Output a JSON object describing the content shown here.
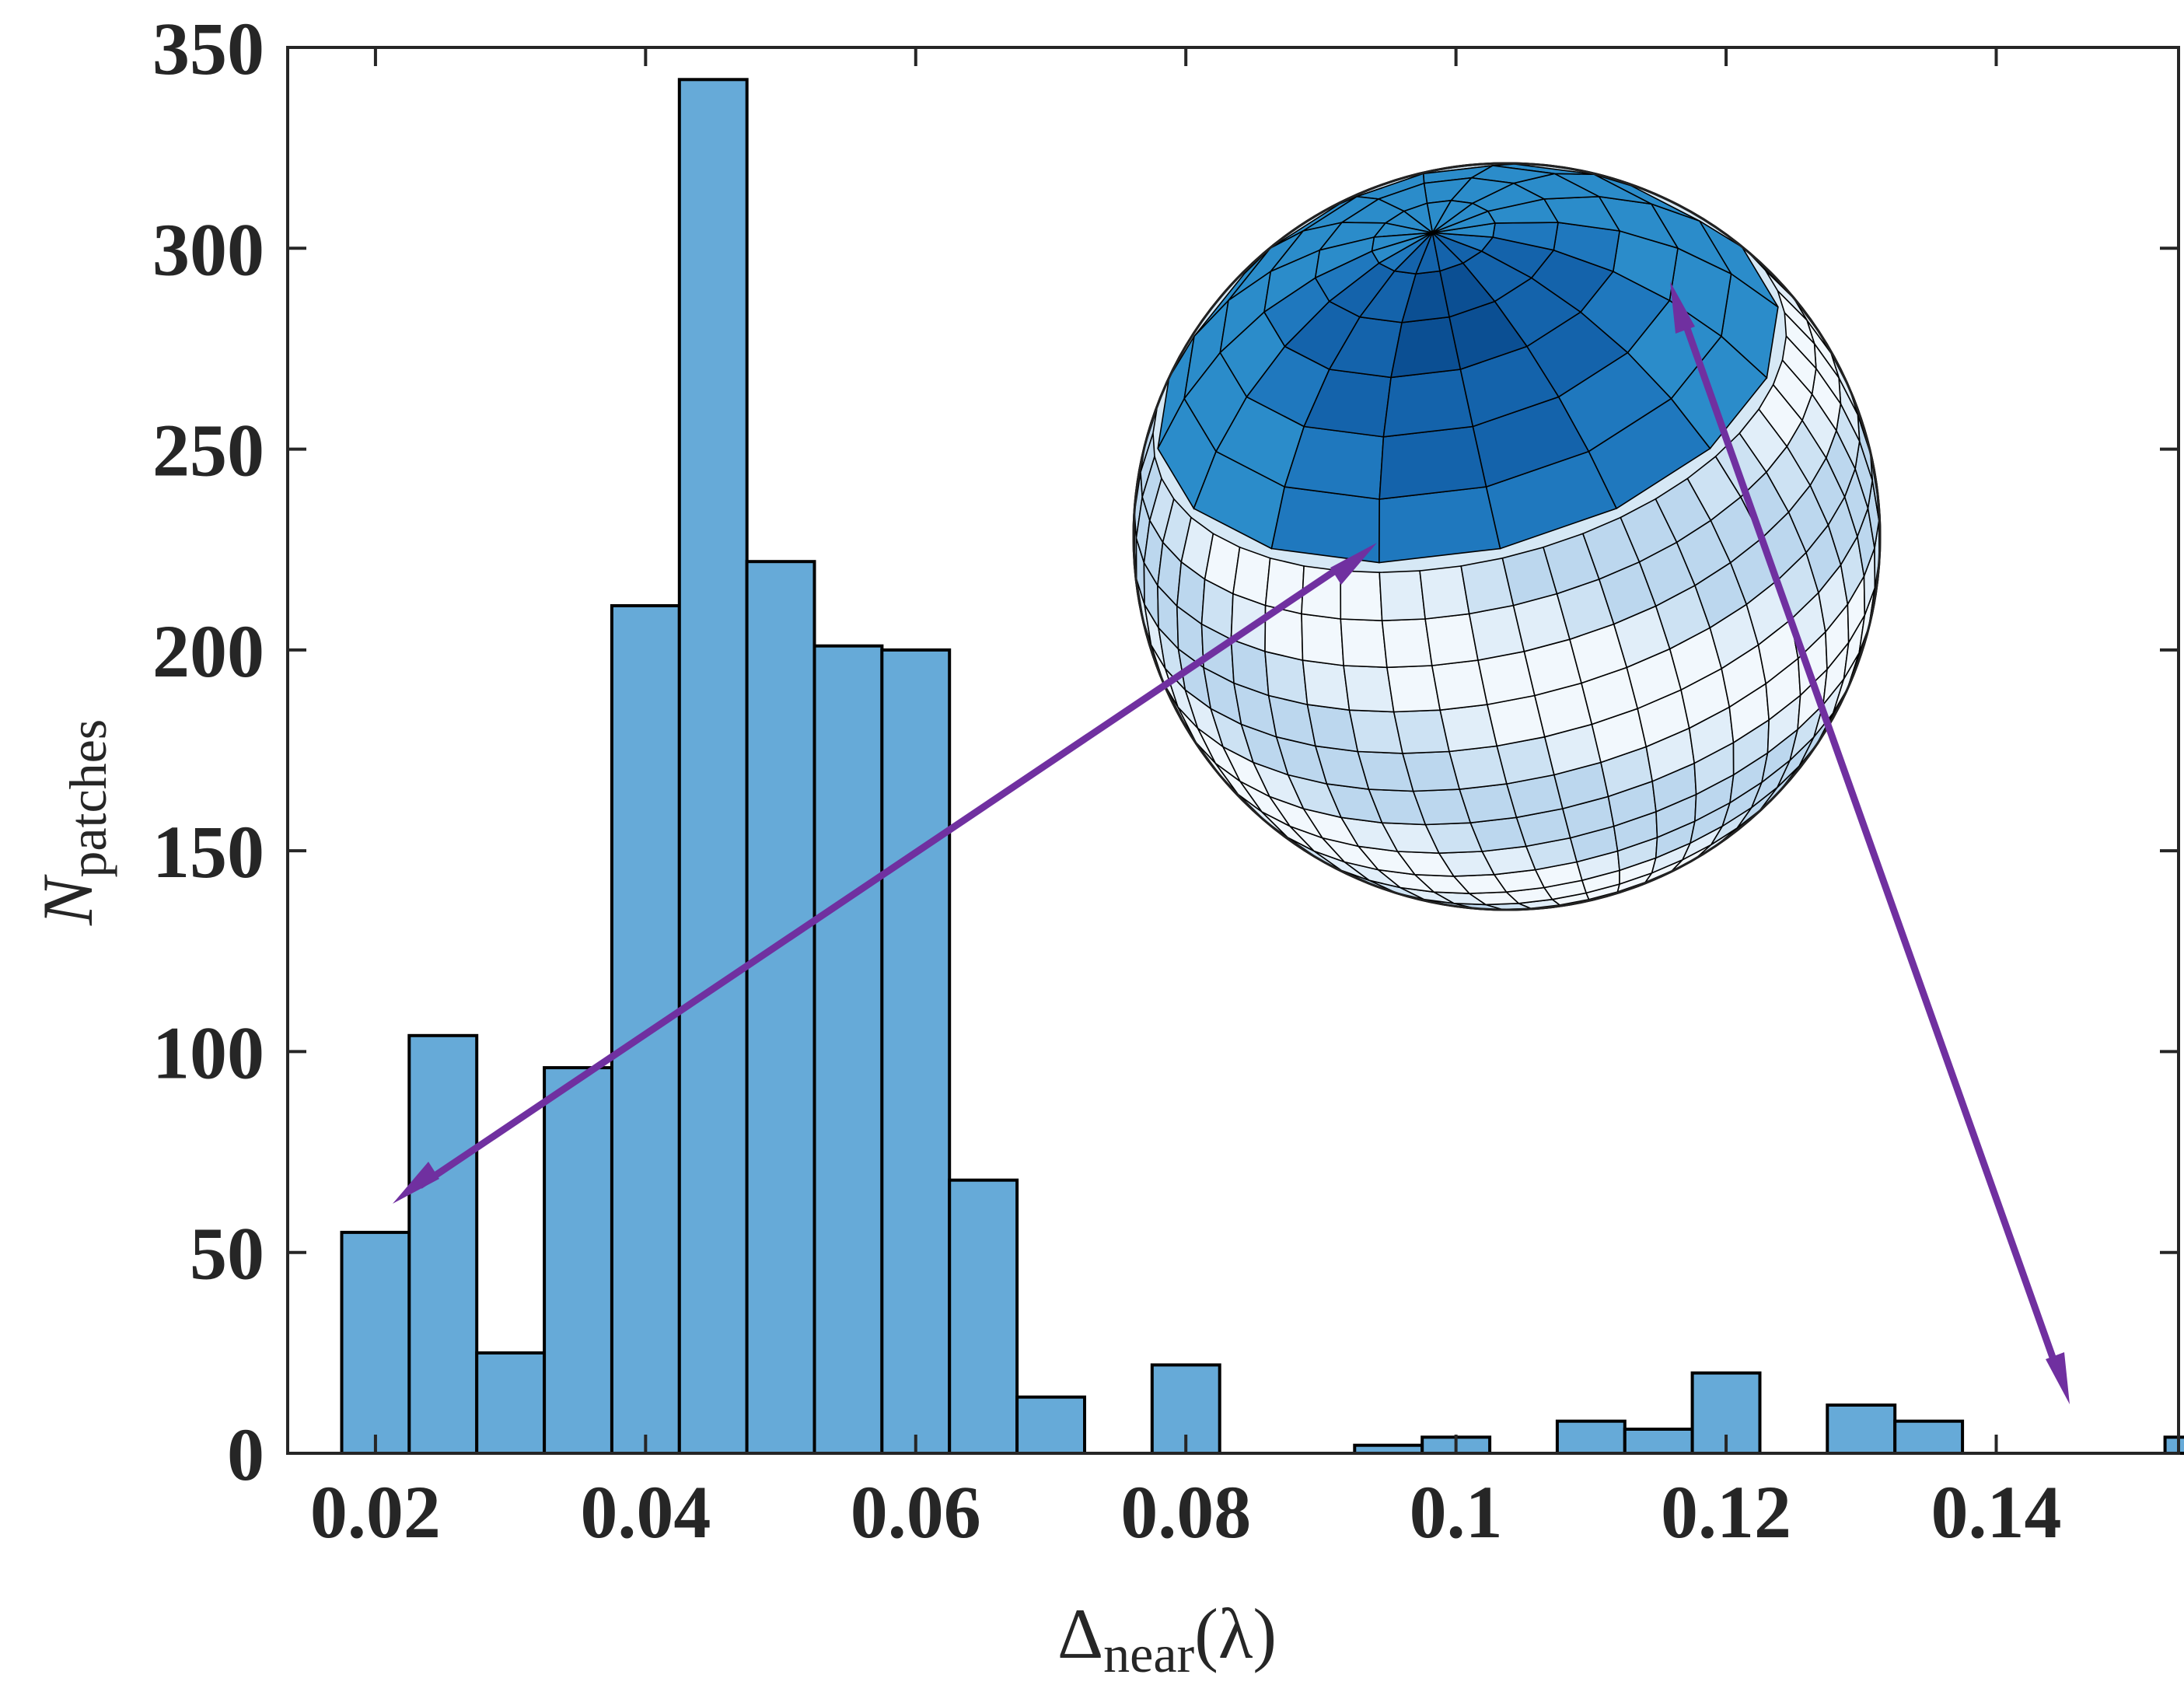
{
  "chart_data": {
    "type": "bar",
    "title": "",
    "xlabel": {
      "main": "Δ",
      "sub": "near",
      "suffix": "(λ)"
    },
    "ylabel": {
      "main": "N",
      "sub": "patches"
    },
    "xlim": [
      0.0135,
      0.1535
    ],
    "ylim": [
      0,
      350
    ],
    "bin_width": 0.005,
    "bins": [
      {
        "start": 0.02,
        "value": 55
      },
      {
        "start": 0.025,
        "value": 104
      },
      {
        "start": 0.03,
        "value": 25
      },
      {
        "start": 0.035,
        "value": 96
      },
      {
        "start": 0.04,
        "value": 211
      },
      {
        "start": 0.045,
        "value": 342
      },
      {
        "start": 0.05,
        "value": 222
      },
      {
        "start": 0.055,
        "value": 201
      },
      {
        "start": 0.06,
        "value": 200
      },
      {
        "start": 0.065,
        "value": 68
      },
      {
        "start": 0.07,
        "value": 14
      },
      {
        "start": 0.075,
        "value": 0
      },
      {
        "start": 0.08,
        "value": 22
      },
      {
        "start": 0.085,
        "value": 0
      },
      {
        "start": 0.09,
        "value": 0
      },
      {
        "start": 0.095,
        "value": 2
      },
      {
        "start": 0.1,
        "value": 4
      },
      {
        "start": 0.105,
        "value": 0
      },
      {
        "start": 0.11,
        "value": 8
      },
      {
        "start": 0.115,
        "value": 6
      },
      {
        "start": 0.12,
        "value": 20
      },
      {
        "start": 0.125,
        "value": 0
      },
      {
        "start": 0.13,
        "value": 12
      },
      {
        "start": 0.135,
        "value": 8
      },
      {
        "start": 0.14,
        "value": 0
      },
      {
        "start": 0.145,
        "value": 0
      },
      {
        "start": 0.15,
        "value": 0
      },
      {
        "start": 0.155,
        "value": 4
      }
    ],
    "xticks": [
      {
        "value": 0.02,
        "label": "0.02"
      },
      {
        "value": 0.04,
        "label": "0.04"
      },
      {
        "value": 0.06,
        "label": "0.06"
      },
      {
        "value": 0.08,
        "label": "0.08"
      },
      {
        "value": 0.1,
        "label": "0.1"
      },
      {
        "value": 0.12,
        "label": "0.12"
      },
      {
        "value": 0.14,
        "label": "0.14"
      }
    ],
    "yticks": [
      {
        "value": 0,
        "label": "0"
      },
      {
        "value": 50,
        "label": "50"
      },
      {
        "value": 100,
        "label": "100"
      },
      {
        "value": 150,
        "label": "150"
      },
      {
        "value": 200,
        "label": "200"
      },
      {
        "value": 250,
        "label": "250"
      },
      {
        "value": 300,
        "label": "300"
      },
      {
        "value": 350,
        "label": "350"
      }
    ],
    "grid": false,
    "legend": "none",
    "colors": {
      "bar": "#66aad8",
      "arrow": "#7030a0"
    },
    "inset": "sphere mesh of patches colored by Δnear; arrows link bins to sphere regions"
  }
}
